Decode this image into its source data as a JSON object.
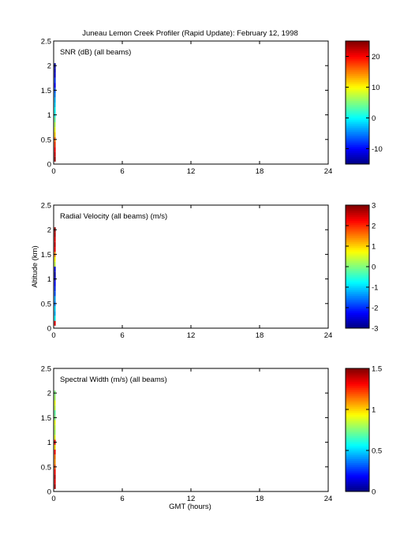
{
  "figure": {
    "title": "Juneau Lemon Creek Profiler (Rapid Update):  February 12, 1998",
    "ylabel": "Altitude (km)",
    "xlabel": "GMT (hours)"
  },
  "chart_data": [
    {
      "type": "heatmap",
      "title": "SNR (dB) (all beams)",
      "xlabel": "",
      "ylabel": "",
      "xlim": [
        0,
        24
      ],
      "ylim": [
        0,
        2.5
      ],
      "xticks": [
        0,
        6,
        12,
        18,
        24
      ],
      "yticks": [
        0,
        0.5,
        1,
        1.5,
        2,
        2.5
      ],
      "colorbar": {
        "range": [
          -15,
          25
        ],
        "ticks": [
          -10,
          0,
          10,
          20
        ]
      },
      "profile": {
        "time_start": 0.05,
        "time_end": 0.18,
        "altitudes": [
          0.1,
          0.2,
          0.3,
          0.4,
          0.5,
          0.6,
          0.7,
          0.8,
          0.9,
          1.0,
          1.1,
          1.2,
          1.3,
          1.4,
          1.5,
          1.6,
          1.7,
          1.8,
          1.9,
          2.0
        ],
        "values": [
          24,
          22,
          20,
          18,
          16,
          12,
          9,
          7,
          4,
          1,
          0,
          -2,
          -3,
          -5,
          -7,
          -10,
          -8,
          -12,
          -13,
          -14
        ]
      }
    },
    {
      "type": "heatmap",
      "title": "Radial Velocity (all beams) (m/s)",
      "xlabel": "",
      "ylabel": "Altitude (km)",
      "xlim": [
        0,
        24
      ],
      "ylim": [
        0,
        2.5
      ],
      "xticks": [
        0,
        6,
        12,
        18,
        24
      ],
      "yticks": [
        0,
        0.5,
        1,
        1.5,
        2,
        2.5
      ],
      "colorbar": {
        "range": [
          -3,
          3
        ],
        "ticks": [
          -3,
          -2,
          -1,
          0,
          1,
          2,
          3
        ]
      },
      "profile": {
        "time_start": 0.05,
        "time_end": 0.18,
        "altitudes": [
          0.1,
          0.2,
          0.3,
          0.4,
          0.5,
          0.6,
          0.7,
          0.8,
          0.9,
          1.0,
          1.1,
          1.2,
          1.3,
          1.4,
          1.5,
          1.6,
          1.7,
          1.8,
          1.9,
          2.0
        ],
        "values": [
          2.4,
          -0.8,
          -1.2,
          -1.0,
          -1.5,
          -1.3,
          -1.8,
          -2.0,
          -2.2,
          -2.6,
          -2.8,
          -2.5,
          0.4,
          0.8,
          1.5,
          2.3,
          2.6,
          2.4,
          2.7,
          2.9
        ]
      }
    },
    {
      "type": "heatmap",
      "title": "Spectral Width (m/s) (all beams)",
      "xlabel": "GMT (hours)",
      "ylabel": "",
      "xlim": [
        0,
        24
      ],
      "ylim": [
        0,
        2.5
      ],
      "xticks": [
        0,
        6,
        12,
        18,
        24
      ],
      "yticks": [
        0,
        0.5,
        1,
        1.5,
        2,
        2.5
      ],
      "colorbar": {
        "range": [
          0,
          1.5
        ],
        "ticks": [
          0,
          0.5,
          1,
          1.5
        ]
      },
      "profile": {
        "time_start": 0.05,
        "time_end": 0.18,
        "altitudes": [
          0.1,
          0.2,
          0.3,
          0.4,
          0.5,
          0.6,
          0.7,
          0.8,
          0.9,
          1.0,
          1.1,
          1.2,
          1.3,
          1.4,
          1.5,
          1.6,
          1.7,
          1.8,
          1.9,
          2.0
        ],
        "values": [
          1.45,
          1.35,
          1.4,
          1.3,
          1.2,
          1.1,
          1.15,
          1.3,
          1.0,
          1.35,
          0.9,
          0.8,
          0.85,
          0.9,
          0.75,
          0.7,
          0.85,
          0.9,
          0.8,
          0.75
        ]
      }
    }
  ]
}
